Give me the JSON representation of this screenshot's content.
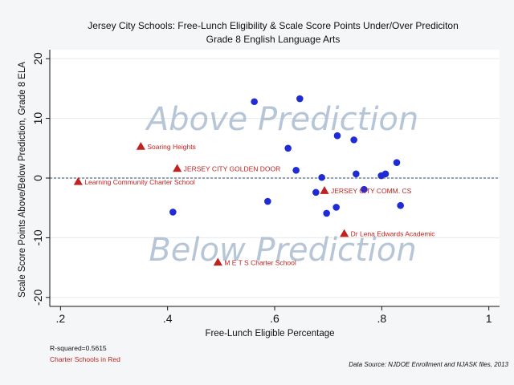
{
  "chart_data": {
    "type": "scatter",
    "title": "Jersey City Schools: Free-Lunch Eligibility & Scale Score Points Under/Over Prediciton",
    "subtitle": "Grade 8 English Language Arts",
    "xlabel": "Free-Lunch Eligible Percentage",
    "ylabel": "Scale Score Points Above/Below Prediction, Grade 8 ELA",
    "xlim": [
      0.18,
      1.02
    ],
    "ylim": [
      -21.5,
      21.5
    ],
    "xticks": [
      ".2",
      ".4",
      ".6",
      ".8",
      "1"
    ],
    "xtick_values": [
      0.2,
      0.4,
      0.6,
      0.8,
      1.0
    ],
    "yticks": [
      "-20",
      "-10",
      "0",
      "10",
      "20"
    ],
    "ytick_values": [
      -20,
      -10,
      0,
      10,
      20
    ],
    "reference_line_y": 0,
    "grid": true,
    "region_labels": {
      "above": "Above Prediction",
      "below": "Below Prediction"
    },
    "series": [
      {
        "color": "#1f2bd6",
        "marker": "circle",
        "points": [
          {
            "x": 0.41,
            "y": -5.7
          },
          {
            "x": 0.562,
            "y": 12.8
          },
          {
            "x": 0.587,
            "y": -3.9
          },
          {
            "x": 0.625,
            "y": 5.0
          },
          {
            "x": 0.64,
            "y": 1.3
          },
          {
            "x": 0.647,
            "y": 13.3
          },
          {
            "x": 0.677,
            "y": -2.4
          },
          {
            "x": 0.688,
            "y": 0.1
          },
          {
            "x": 0.697,
            "y": -5.9
          },
          {
            "x": 0.715,
            "y": -4.9
          },
          {
            "x": 0.717,
            "y": 7.1
          },
          {
            "x": 0.748,
            "y": 6.4
          },
          {
            "x": 0.752,
            "y": 0.7
          },
          {
            "x": 0.767,
            "y": -1.9
          },
          {
            "x": 0.799,
            "y": 0.4
          },
          {
            "x": 0.807,
            "y": 0.7
          },
          {
            "x": 0.828,
            "y": 2.6
          },
          {
            "x": 0.835,
            "y": -4.6
          }
        ]
      },
      {
        "color": "#c0221f",
        "marker": "triangle",
        "points": [
          {
            "x": 0.233,
            "y": -0.6,
            "label": "Learning Community Charter School"
          },
          {
            "x": 0.35,
            "y": 5.3,
            "label": "Soaring Heights"
          },
          {
            "x": 0.418,
            "y": 1.6,
            "label": "JERSEY CITY GOLDEN DOOR"
          },
          {
            "x": 0.494,
            "y": -14.1,
            "label": "M E T S Charter School"
          },
          {
            "x": 0.693,
            "y": -2.1,
            "label": "JERSEY CITY COMM. CS"
          },
          {
            "x": 0.73,
            "y": -9.3,
            "label": "Dr Lena Edwards Academic"
          }
        ]
      }
    ],
    "notes": {
      "r_squared": "R-squared=0.5615",
      "legend_note": "Charter Schools in Red",
      "source": "Data Source: NJDOE Enrollment and NJASK files, 2013"
    }
  }
}
